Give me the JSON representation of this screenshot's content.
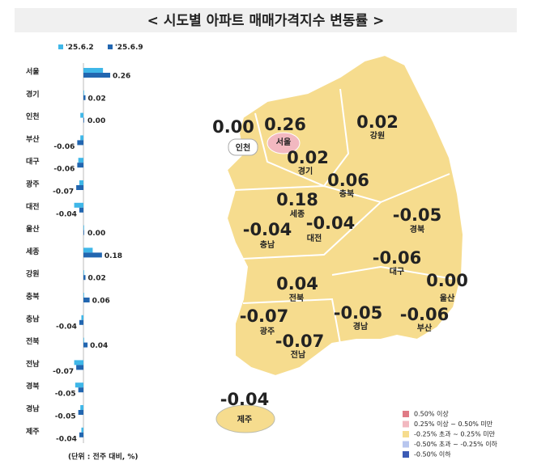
{
  "chart_data": {
    "type": "barh",
    "title": "< 시도별 아파트 매매가격지수 변동률 >",
    "note": "(단위 : 전주 대비, %)",
    "categories": [
      "서울",
      "경기",
      "인천",
      "부산",
      "대구",
      "광주",
      "대전",
      "울산",
      "세종",
      "강원",
      "충북",
      "충남",
      "전북",
      "전남",
      "경북",
      "경남",
      "제주"
    ],
    "series": [
      {
        "name": "'25.6.2",
        "color": "#3fb7e8",
        "values": [
          0.19,
          0.0,
          -0.03,
          -0.03,
          -0.05,
          -0.04,
          -0.09,
          0.0,
          0.09,
          0.0,
          0.0,
          -0.02,
          0.0,
          -0.09,
          -0.08,
          -0.03,
          -0.02
        ]
      },
      {
        "name": "'25.6.9",
        "color": "#2266b0",
        "values": [
          0.26,
          0.02,
          0.0,
          -0.06,
          -0.06,
          -0.07,
          -0.04,
          0.0,
          0.18,
          0.02,
          0.06,
          -0.04,
          0.04,
          -0.07,
          -0.05,
          -0.05,
          -0.04
        ],
        "value_labels": [
          "0.26",
          "0.02",
          "0.00",
          "-0.06",
          "-0.06",
          "-0.07",
          "-0.04",
          "0.00",
          "0.18",
          "0.02",
          "0.06",
          "-0.04",
          "0.04",
          "-0.07",
          "-0.05",
          "-0.05",
          "-0.04"
        ]
      }
    ],
    "map_legend": [
      {
        "label": "0.50% 이상",
        "color": "#e07b86"
      },
      {
        "label": "0.25% 이상 ~ 0.50% 미만",
        "color": "#f2b8c0"
      },
      {
        "label": "-0.25% 초과 ~ 0.25% 미만",
        "color": "#f6dc8e"
      },
      {
        "label": "-0.50% 초과 ~ -0.25% 이하",
        "color": "#b8c6ee"
      },
      {
        "label": "-0.50% 이하",
        "color": "#3b5bb5"
      }
    ]
  }
}
